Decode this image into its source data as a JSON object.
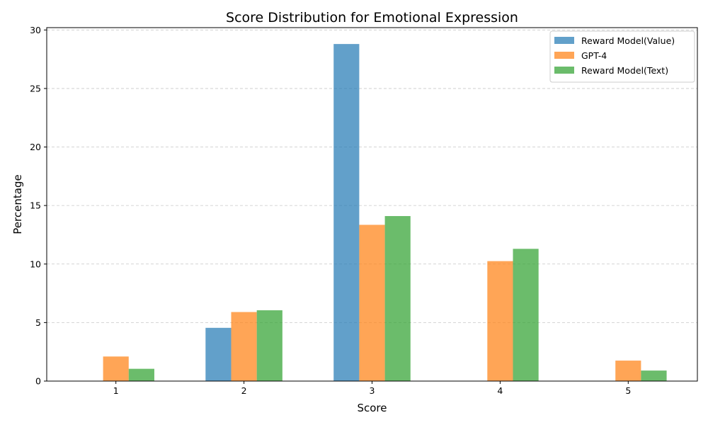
{
  "chart_data": {
    "type": "bar",
    "title": "Score Distribution for Emotional Expression",
    "xlabel": "Score",
    "ylabel": "Percentage",
    "categories": [
      "1",
      "2",
      "3",
      "4",
      "5"
    ],
    "ylim": [
      0,
      30.2
    ],
    "yticks": [
      0,
      5,
      10,
      15,
      20,
      25,
      30
    ],
    "grid": "y-dashed",
    "legend_position": "top-right",
    "series": [
      {
        "name": "Reward Model(Value)",
        "color": "#1f77b4",
        "values": [
          0,
          4.55,
          28.8,
          0,
          0
        ]
      },
      {
        "name": "GPT-4",
        "color": "#ff7f0e",
        "values": [
          2.1,
          5.9,
          13.35,
          10.25,
          1.75
        ]
      },
      {
        "name": "Reward Model(Text)",
        "color": "#2ca02c",
        "values": [
          1.05,
          6.05,
          14.1,
          11.3,
          0.9
        ]
      }
    ]
  }
}
